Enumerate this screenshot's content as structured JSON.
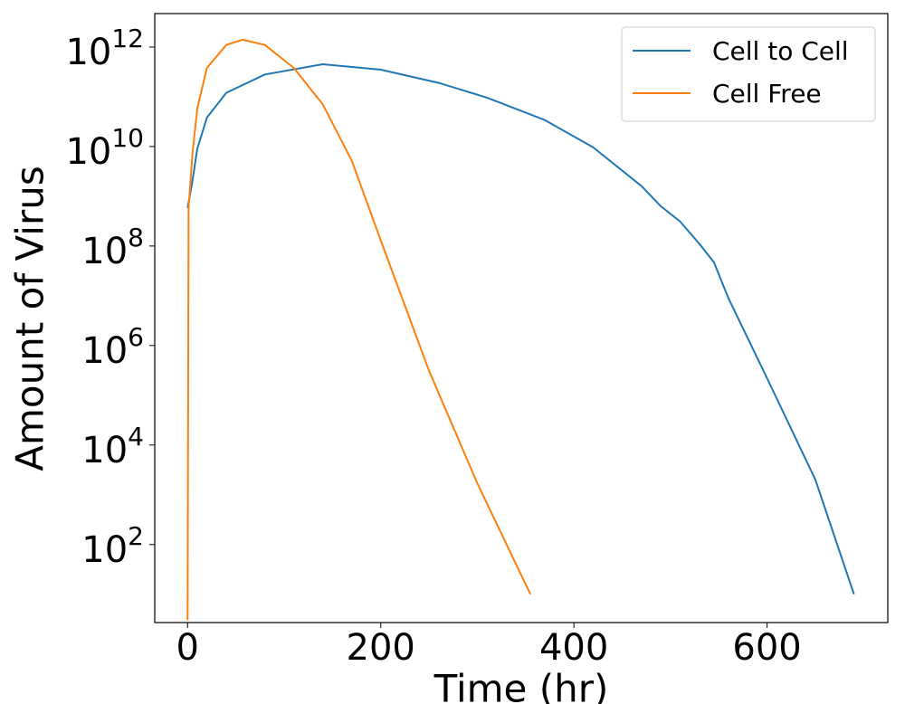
{
  "chart_data": {
    "type": "line",
    "xlabel": "Time (hr)",
    "ylabel": "Amount of Virus",
    "xlim": [
      -34,
      725
    ],
    "xticks": [
      0,
      200,
      400,
      600
    ],
    "ylim": [
      2.7,
      4700000000000.0
    ],
    "yscale": "log",
    "yticks": [
      {
        "value": 100,
        "label": "10^2"
      },
      {
        "value": 10000,
        "label": "10^4"
      },
      {
        "value": 1000000,
        "label": "10^6"
      },
      {
        "value": 100000000,
        "label": "10^8"
      },
      {
        "value": 10000000000,
        "label": "10^10"
      },
      {
        "value": 1000000000000,
        "label": "10^12"
      }
    ],
    "legend": "upper right",
    "series": [
      {
        "name": "Cell to Cell",
        "color": "#1f77b4",
        "x": [
          0,
          5,
          10,
          20,
          40,
          80,
          140,
          200,
          260,
          310,
          370,
          420,
          470,
          490,
          510,
          530,
          545,
          560,
          600,
          650,
          690
        ],
        "values": [
          580000000,
          2000000000,
          9000000000,
          38000000000,
          120000000000,
          280000000000,
          450000000000,
          350000000000,
          190000000000,
          96000000000,
          34000000000,
          9600000000,
          1600000000,
          630000000,
          310000000,
          110000000,
          47000000,
          8900000,
          220000,
          2000,
          10
        ]
      },
      {
        "name": "Cell Free",
        "color": "#ff7f0e",
        "x": [
          0,
          1,
          5,
          10,
          20,
          40,
          57,
          80,
          110,
          140,
          170,
          200,
          250,
          300,
          355
        ],
        "values": [
          3,
          580000000,
          7000000000,
          58000000000,
          380000000000,
          1100000000000,
          1400000000000,
          1100000000000,
          380000000000,
          70000000000,
          5200000000,
          130000000,
          310000,
          1700,
          10
        ]
      }
    ]
  }
}
